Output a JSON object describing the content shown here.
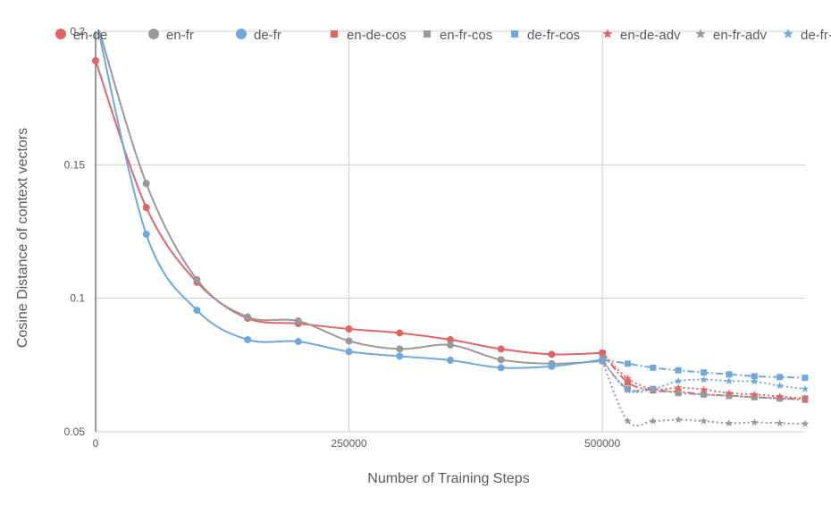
{
  "chart_data": {
    "type": "line",
    "xlabel": "Number of Training Steps",
    "ylabel": "Cosine Distance of context vectors",
    "xlim": [
      0,
      700000
    ],
    "ylim": [
      0.05,
      0.2
    ],
    "x_ticks": [
      "0",
      "250000",
      "500000"
    ],
    "y_ticks": [
      "0.05",
      "0.1",
      "0.15",
      "0.2"
    ],
    "grid": true,
    "legend_position": "top",
    "series": [
      {
        "name": "en-de",
        "color": "#e06666",
        "marker": "circle",
        "line": "solid",
        "x": [
          0,
          50000,
          100000,
          150000,
          200000,
          250000,
          300000,
          350000,
          400000,
          450000,
          500000
        ],
        "y": [
          0.189,
          0.134,
          0.106,
          0.0925,
          0.0905,
          0.0885,
          0.087,
          0.0845,
          0.081,
          0.079,
          0.0795
        ]
      },
      {
        "name": "en-fr",
        "color": "#999999",
        "marker": "circle",
        "line": "solid",
        "x": [
          0,
          50000,
          100000,
          150000,
          200000,
          250000,
          300000,
          350000,
          400000,
          450000,
          500000
        ],
        "y": [
          0.205,
          0.143,
          0.107,
          0.093,
          0.0915,
          0.084,
          0.081,
          0.0825,
          0.077,
          0.0755,
          0.0765
        ]
      },
      {
        "name": "de-fr",
        "color": "#6fa8dc",
        "marker": "circle",
        "line": "solid",
        "x": [
          0,
          50000,
          100000,
          150000,
          200000,
          250000,
          300000,
          350000,
          400000,
          450000,
          500000
        ],
        "y": [
          0.205,
          0.124,
          0.0955,
          0.0845,
          0.0838,
          0.08,
          0.0783,
          0.0768,
          0.074,
          0.0745,
          0.077
        ]
      },
      {
        "name": "en-de-cos",
        "color": "#e06666",
        "marker": "square",
        "line": "dashdot",
        "x": [
          500000,
          525000,
          550000,
          575000,
          600000,
          625000,
          650000,
          675000,
          700000
        ],
        "y": [
          0.0795,
          0.0685,
          0.0655,
          0.065,
          0.064,
          0.0635,
          0.063,
          0.0625,
          0.062
        ]
      },
      {
        "name": "en-fr-cos",
        "color": "#999999",
        "marker": "square",
        "line": "dashdot",
        "x": [
          500000,
          525000,
          550000,
          575000,
          600000,
          625000,
          650000,
          675000,
          700000
        ],
        "y": [
          0.0765,
          0.066,
          0.066,
          0.0645,
          0.064,
          0.0635,
          0.063,
          0.0625,
          0.0625
        ]
      },
      {
        "name": "de-fr-cos",
        "color": "#6fa8dc",
        "marker": "square",
        "line": "dashdot",
        "x": [
          500000,
          525000,
          550000,
          575000,
          600000,
          625000,
          650000,
          675000,
          700000
        ],
        "y": [
          0.077,
          0.0755,
          0.074,
          0.073,
          0.0722,
          0.0715,
          0.0708,
          0.0705,
          0.0702
        ]
      },
      {
        "name": "en-de-adv",
        "color": "#e06666",
        "marker": "star",
        "line": "dotted",
        "x": [
          500000,
          525000,
          550000,
          575000,
          600000,
          625000,
          650000,
          675000,
          700000
        ],
        "y": [
          0.0795,
          0.07,
          0.066,
          0.0665,
          0.0658,
          0.0645,
          0.064,
          0.0632,
          0.0625
        ]
      },
      {
        "name": "en-fr-adv",
        "color": "#999999",
        "marker": "star",
        "line": "dotted",
        "x": [
          500000,
          525000,
          550000,
          575000,
          600000,
          625000,
          650000,
          675000,
          700000
        ],
        "y": [
          0.0765,
          0.054,
          0.054,
          0.0545,
          0.054,
          0.0532,
          0.0535,
          0.0532,
          0.053
        ]
      },
      {
        "name": "de-fr-adv",
        "color": "#6fa8dc",
        "marker": "star",
        "line": "dotted",
        "x": [
          500000,
          525000,
          550000,
          575000,
          600000,
          625000,
          650000,
          675000,
          700000
        ],
        "y": [
          0.077,
          0.0655,
          0.066,
          0.069,
          0.0695,
          0.069,
          0.0688,
          0.0672,
          0.066
        ]
      }
    ]
  }
}
